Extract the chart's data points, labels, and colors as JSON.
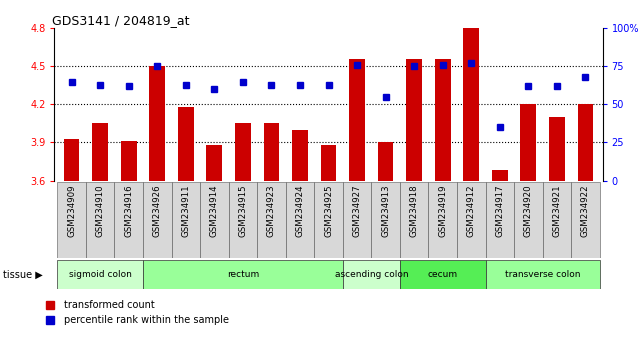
{
  "title": "GDS3141 / 204819_at",
  "samples": [
    "GSM234909",
    "GSM234910",
    "GSM234916",
    "GSM234926",
    "GSM234911",
    "GSM234914",
    "GSM234915",
    "GSM234923",
    "GSM234924",
    "GSM234925",
    "GSM234927",
    "GSM234913",
    "GSM234918",
    "GSM234919",
    "GSM234912",
    "GSM234917",
    "GSM234920",
    "GSM234921",
    "GSM234922"
  ],
  "transformed_count": [
    3.93,
    4.05,
    3.91,
    4.5,
    4.18,
    3.88,
    4.05,
    4.05,
    4.0,
    3.88,
    4.56,
    3.9,
    4.56,
    4.56,
    4.8,
    3.68,
    4.2,
    4.1,
    4.2
  ],
  "percentile_rank": [
    65,
    63,
    62,
    75,
    63,
    60,
    65,
    63,
    63,
    63,
    76,
    55,
    75,
    76,
    77,
    35,
    62,
    62,
    68
  ],
  "tissue_groups": [
    {
      "label": "sigmoid colon",
      "start": 0,
      "end": 3,
      "color": "#ccffcc"
    },
    {
      "label": "rectum",
      "start": 3,
      "end": 10,
      "color": "#99ff99"
    },
    {
      "label": "ascending colon",
      "start": 10,
      "end": 12,
      "color": "#ccffcc"
    },
    {
      "label": "cecum",
      "start": 12,
      "end": 15,
      "color": "#55ee55"
    },
    {
      "label": "transverse colon",
      "start": 15,
      "end": 19,
      "color": "#99ff99"
    }
  ],
  "ylim_left": [
    3.6,
    4.8
  ],
  "ylim_right": [
    0,
    100
  ],
  "yticks_left": [
    3.6,
    3.9,
    4.2,
    4.5,
    4.8
  ],
  "yticks_right": [
    0,
    25,
    50,
    75,
    100
  ],
  "ytick_labels_right": [
    "0",
    "25",
    "50",
    "75",
    "100%"
  ],
  "bar_color": "#cc0000",
  "dot_color": "#0000cc",
  "bar_bottom": 3.6,
  "gridline_y": [
    3.9,
    4.2,
    4.5
  ],
  "label_cell_color": "#d8d8d8",
  "background_color": "#ffffff"
}
